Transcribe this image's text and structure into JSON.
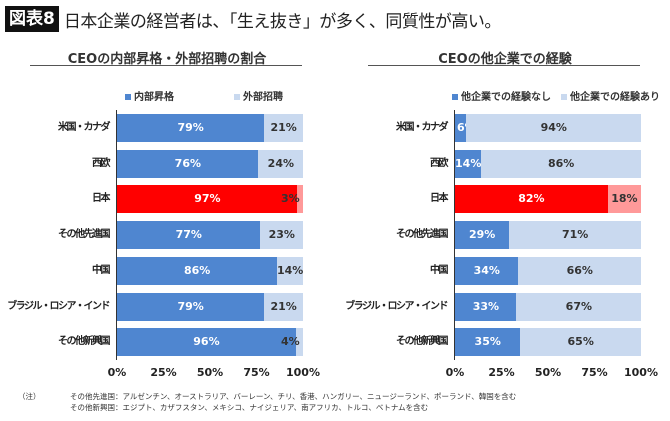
{
  "header": {
    "badge": "図表8",
    "title": "日本企業の経営者は、「生え抜き」が多く、同質性が高い。"
  },
  "colors": {
    "primary": "#4f86d0",
    "secondary": "#c9d9ef",
    "highlight_primary": "#ff0000",
    "highlight_secondary": "#ff9999"
  },
  "chart_data": [
    {
      "type": "bar",
      "orientation": "horizontal",
      "stacked": true,
      "title": "CEOの内部昇格・外部招聘の割合",
      "categories": [
        "米国・カナダ",
        "西欧",
        "日本",
        "その他先進国",
        "中国",
        "ブラジル・ロシア・インド",
        "その他新興国"
      ],
      "series": [
        {
          "name": "内部昇格",
          "values": [
            79,
            76,
            97,
            77,
            86,
            79,
            96
          ]
        },
        {
          "name": "外部招聘",
          "values": [
            21,
            24,
            3,
            23,
            14,
            21,
            4
          ]
        }
      ],
      "highlight": "日本",
      "xlim": [
        0,
        100
      ],
      "xticks": [
        "0%",
        "25%",
        "50%",
        "75%",
        "100%"
      ],
      "legend": "top"
    },
    {
      "type": "bar",
      "orientation": "horizontal",
      "stacked": true,
      "title": "CEOの他企業での経験",
      "categories": [
        "米国・カナダ",
        "西欧",
        "日本",
        "その他先進国",
        "中国",
        "ブラジル・ロシア・インド",
        "その他新興国"
      ],
      "series": [
        {
          "name": "他企業での経験なし",
          "values": [
            6,
            14,
            82,
            29,
            34,
            33,
            35
          ]
        },
        {
          "name": "他企業での経験あり",
          "values": [
            94,
            86,
            18,
            71,
            66,
            67,
            65
          ]
        }
      ],
      "highlight": "日本",
      "xlim": [
        0,
        100
      ],
      "xticks": [
        "0%",
        "25%",
        "50%",
        "75%",
        "100%"
      ],
      "legend": "top"
    }
  ],
  "notes": {
    "label": "（注）",
    "lines": [
      "その他先進国：アルゼンチン、オーストラリア、バーレーン、チリ、香港、ハンガリー、ニュージーランド、ポーランド、韓国を含む",
      "その他新興国：エジプト、カザフスタン、メキシコ、ナイジェリア、南アフリカ、トルコ、ベトナムを含む"
    ]
  }
}
